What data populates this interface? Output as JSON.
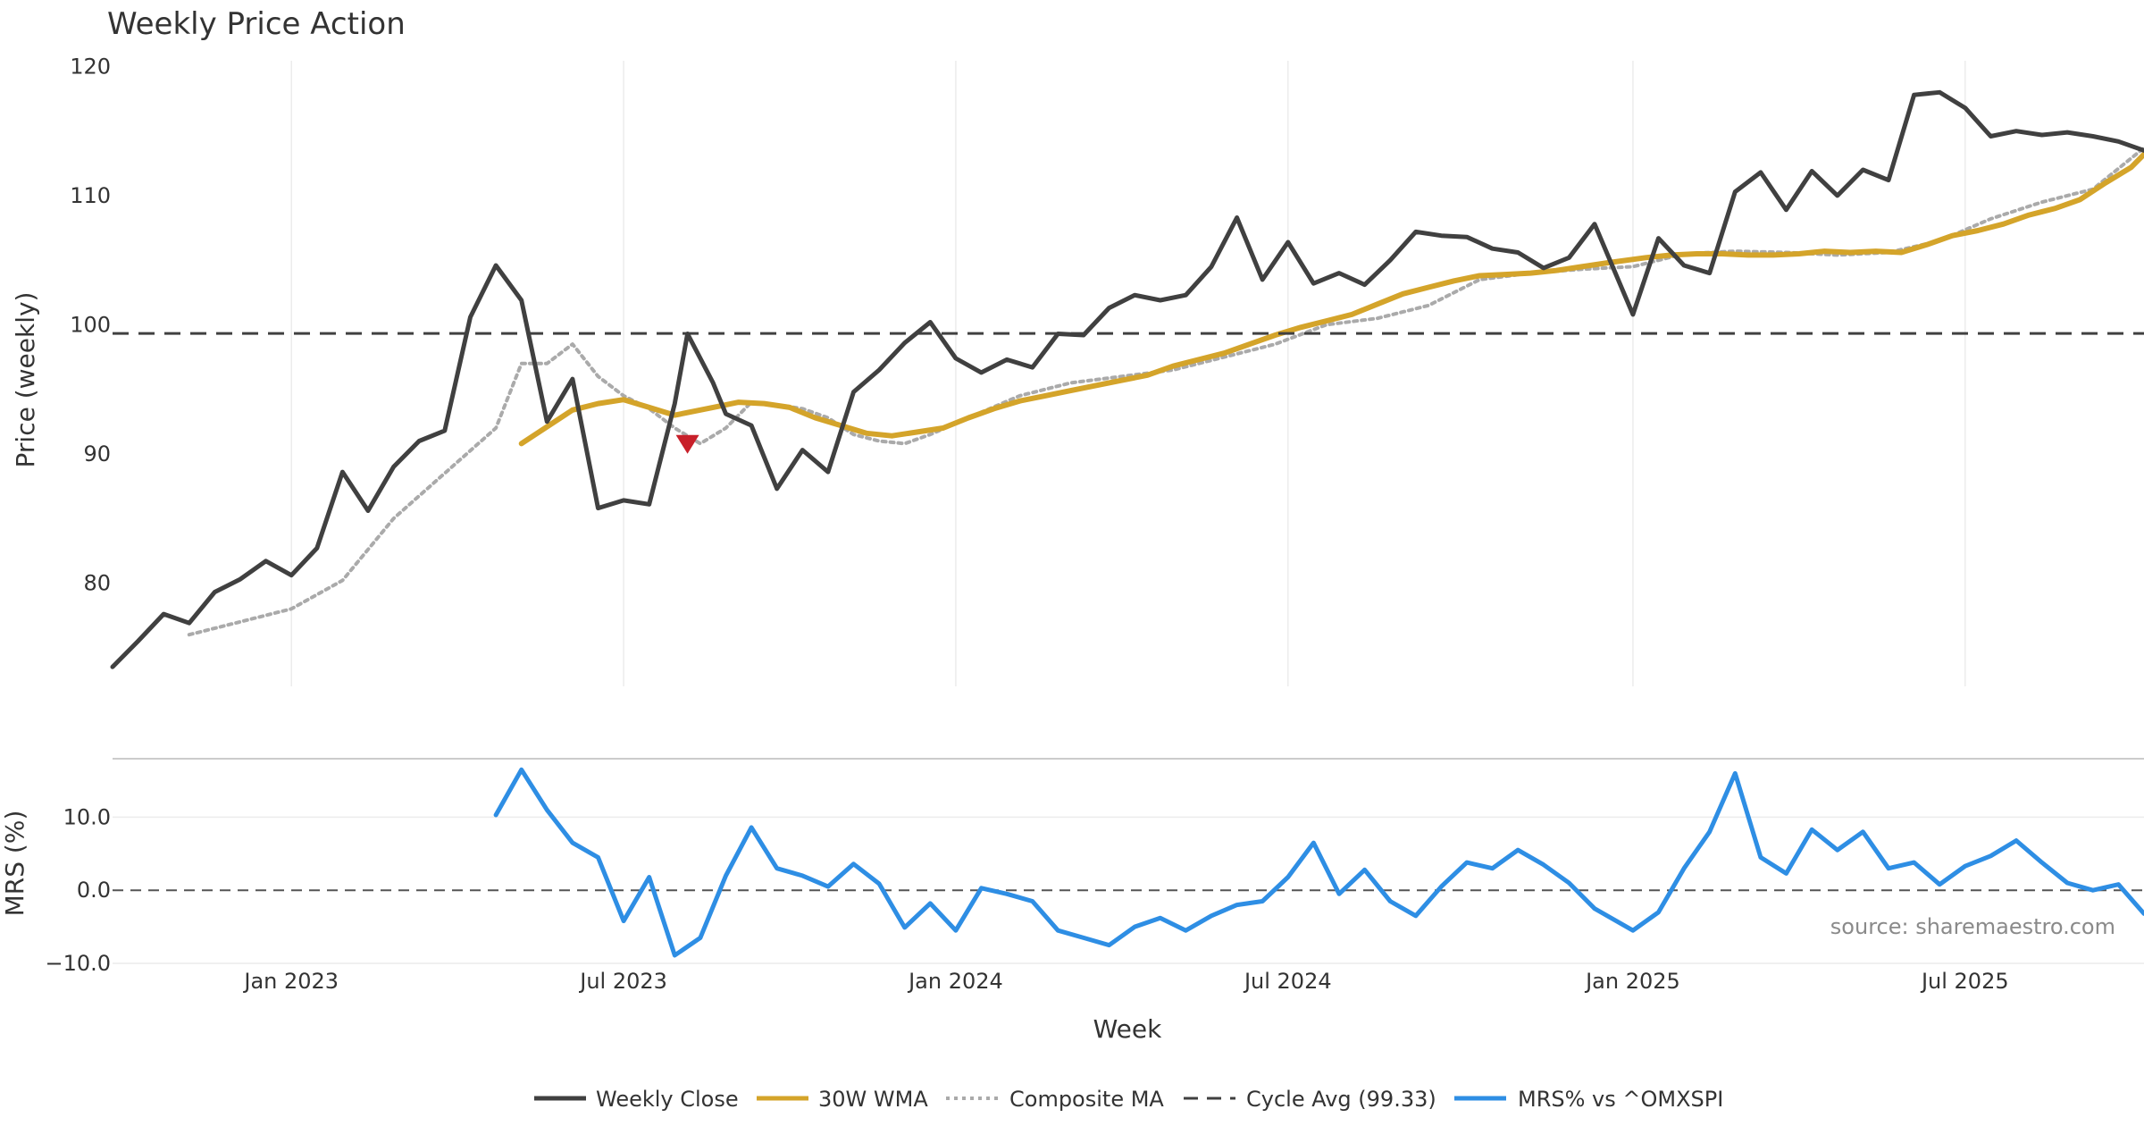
{
  "chart_data": {
    "type": "line",
    "title": "Weekly Price Action",
    "price_panel": {
      "ylabel": "Price (weekly)",
      "ylim": [
        72,
        121
      ],
      "yticks": [
        {
          "value": 80,
          "label": "80"
        },
        {
          "value": 90,
          "label": "90"
        },
        {
          "value": 100,
          "label": "100"
        },
        {
          "value": 110,
          "label": "110"
        },
        {
          "value": 120,
          "label": "120"
        }
      ],
      "cycle_avg": 99.33
    },
    "mrs_panel": {
      "ylabel": "MRS (%)",
      "ylim": [
        -10,
        18
      ],
      "yticks": [
        {
          "value": -10,
          "label": "−10.0"
        },
        {
          "value": 0,
          "label": "0.0"
        },
        {
          "value": 10,
          "label": "10.0"
        }
      ],
      "source_note": "source: sharemaestro.com"
    },
    "xlabel": "Week",
    "x_start": "2022-09-26",
    "x_end": "2025-10-13",
    "x_ticks": [
      {
        "date": "2023-01-02",
        "label": "Jan 2023"
      },
      {
        "date": "2023-07-03",
        "label": "Jul 2023"
      },
      {
        "date": "2024-01-01",
        "label": "Jan 2024"
      },
      {
        "date": "2024-07-01",
        "label": "Jul 2024"
      },
      {
        "date": "2025-01-06",
        "label": "Jan 2025"
      },
      {
        "date": "2025-07-07",
        "label": "Jul 2025"
      }
    ],
    "series": [
      {
        "name": "Weekly Close",
        "color": "#404040",
        "dates": [
          "2022-09-26",
          "2022-10-10",
          "2022-10-24",
          "2022-11-07",
          "2022-11-21",
          "2022-12-05",
          "2022-12-19",
          "2023-01-02",
          "2023-01-16",
          "2023-01-30",
          "2023-02-13",
          "2023-02-27",
          "2023-03-13",
          "2023-03-27",
          "2023-04-10",
          "2023-04-24",
          "2023-05-08",
          "2023-05-22",
          "2023-06-05",
          "2023-06-19",
          "2023-07-03",
          "2023-07-17",
          "2023-07-31",
          "2023-08-07",
          "2023-08-21",
          "2023-08-28",
          "2023-09-11",
          "2023-09-25",
          "2023-10-09",
          "2023-10-23",
          "2023-11-06",
          "2023-11-20",
          "2023-12-04",
          "2023-12-18",
          "2024-01-01",
          "2024-01-15",
          "2024-01-29",
          "2024-02-12",
          "2024-02-26",
          "2024-03-11",
          "2024-03-25",
          "2024-04-08",
          "2024-04-22",
          "2024-05-06",
          "2024-05-20",
          "2024-06-03",
          "2024-06-17",
          "2024-07-01",
          "2024-07-15",
          "2024-07-29",
          "2024-08-12",
          "2024-08-26",
          "2024-09-09",
          "2024-09-23",
          "2024-10-07",
          "2024-10-21",
          "2024-11-04",
          "2024-11-18",
          "2024-12-02",
          "2024-12-16",
          "2025-01-06",
          "2025-01-20",
          "2025-02-03",
          "2025-02-17",
          "2025-03-03",
          "2025-03-17",
          "2025-03-31",
          "2025-04-14",
          "2025-04-28",
          "2025-05-12",
          "2025-05-26",
          "2025-06-09",
          "2025-06-23",
          "2025-07-07",
          "2025-07-21",
          "2025-08-04",
          "2025-08-18",
          "2025-09-01",
          "2025-09-15",
          "2025-09-29",
          "2025-10-13"
        ],
        "values": [
          73.5,
          75.5,
          77.6,
          76.9,
          79.3,
          80.3,
          81.7,
          80.6,
          82.7,
          88.6,
          85.6,
          89.0,
          91.0,
          91.8,
          100.6,
          104.6,
          101.9,
          92.5,
          95.8,
          85.8,
          86.4,
          86.1,
          93.9,
          99.3,
          95.5,
          93.1,
          92.2,
          87.3,
          90.3,
          88.6,
          94.8,
          96.5,
          98.6,
          100.2,
          97.4,
          96.3,
          97.3,
          96.7,
          99.3,
          99.2,
          101.3,
          102.3,
          101.9,
          102.3,
          104.5,
          108.3,
          103.5,
          106.4,
          103.2,
          104.0,
          103.1,
          105.0,
          107.2,
          106.9,
          106.8,
          105.9,
          105.6,
          104.4,
          105.2,
          107.8,
          100.8,
          106.7,
          104.6,
          104.0,
          110.3,
          111.8,
          108.9,
          111.9,
          110.0,
          112.0,
          111.2,
          117.8,
          118.0,
          116.8,
          114.6,
          115.0,
          114.7,
          114.9,
          114.6,
          114.2,
          113.5
        ]
      },
      {
        "name": "30W WMA",
        "color": "#d4a42a",
        "dates": [
          "2023-05-08",
          "2023-06-05",
          "2023-06-19",
          "2023-07-03",
          "2023-07-17",
          "2023-07-31",
          "2023-08-21",
          "2023-09-04",
          "2023-09-18",
          "2023-10-02",
          "2023-10-16",
          "2023-10-30",
          "2023-11-13",
          "2023-11-27",
          "2023-12-11",
          "2023-12-25",
          "2024-01-08",
          "2024-01-22",
          "2024-02-05",
          "2024-02-19",
          "2024-03-04",
          "2024-03-18",
          "2024-04-01",
          "2024-04-15",
          "2024-04-29",
          "2024-05-13",
          "2024-05-27",
          "2024-06-10",
          "2024-06-24",
          "2024-07-08",
          "2024-07-22",
          "2024-08-05",
          "2024-08-19",
          "2024-09-02",
          "2024-09-16",
          "2024-09-30",
          "2024-10-14",
          "2024-10-28",
          "2024-11-11",
          "2024-11-25",
          "2024-12-09",
          "2024-12-23",
          "2025-01-13",
          "2025-01-27",
          "2025-02-10",
          "2025-02-24",
          "2025-03-10",
          "2025-03-24",
          "2025-04-07",
          "2025-04-21",
          "2025-05-05",
          "2025-05-19",
          "2025-06-02",
          "2025-06-16",
          "2025-06-30",
          "2025-07-14",
          "2025-07-28",
          "2025-08-11",
          "2025-08-25",
          "2025-09-08",
          "2025-09-22",
          "2025-10-06",
          "2025-10-13"
        ],
        "values": [
          90.8,
          93.4,
          93.9,
          94.2,
          93.6,
          93.0,
          93.6,
          94.0,
          93.9,
          93.6,
          92.8,
          92.2,
          91.6,
          91.4,
          91.7,
          92.0,
          92.8,
          93.5,
          94.1,
          94.5,
          94.9,
          95.3,
          95.7,
          96.1,
          96.8,
          97.3,
          97.8,
          98.5,
          99.2,
          99.8,
          100.3,
          100.8,
          101.6,
          102.4,
          102.9,
          103.4,
          103.8,
          103.9,
          104.0,
          104.2,
          104.5,
          104.8,
          105.2,
          105.4,
          105.5,
          105.5,
          105.4,
          105.4,
          105.5,
          105.7,
          105.6,
          105.7,
          105.6,
          106.2,
          106.9,
          107.3,
          107.8,
          108.5,
          109.0,
          109.7,
          111.0,
          112.2,
          113.2
        ]
      },
      {
        "name": "Composite MA",
        "color": "#aaaaaa",
        "dates": [
          "2022-11-07",
          "2022-12-05",
          "2023-01-02",
          "2023-01-30",
          "2023-02-27",
          "2023-03-27",
          "2023-04-24",
          "2023-05-08",
          "2023-05-22",
          "2023-06-05",
          "2023-06-19",
          "2023-07-03",
          "2023-07-17",
          "2023-07-31",
          "2023-08-14",
          "2023-08-28",
          "2023-09-11",
          "2023-09-25",
          "2023-10-09",
          "2023-10-23",
          "2023-11-06",
          "2023-11-20",
          "2023-12-04",
          "2023-12-18",
          "2024-01-08",
          "2024-02-05",
          "2024-03-04",
          "2024-04-01",
          "2024-04-29",
          "2024-05-27",
          "2024-06-24",
          "2024-07-22",
          "2024-08-19",
          "2024-09-16",
          "2024-10-14",
          "2024-11-11",
          "2024-12-09",
          "2025-01-06",
          "2025-02-03",
          "2025-03-03",
          "2025-03-31",
          "2025-04-28",
          "2025-05-26",
          "2025-06-23",
          "2025-07-21",
          "2025-08-18",
          "2025-09-15",
          "2025-10-13"
        ],
        "values": [
          76.0,
          77.0,
          78.0,
          80.2,
          85.0,
          88.5,
          92.0,
          97.0,
          97.0,
          98.5,
          96.0,
          94.5,
          93.5,
          92.0,
          90.8,
          92.0,
          94.0,
          93.8,
          93.5,
          92.8,
          91.5,
          91.0,
          90.8,
          91.5,
          92.8,
          94.5,
          95.5,
          96.0,
          96.5,
          97.5,
          98.5,
          100.0,
          100.5,
          101.5,
          103.5,
          104.0,
          104.3,
          104.5,
          105.5,
          105.7,
          105.6,
          105.4,
          105.6,
          106.5,
          108.2,
          109.5,
          110.5,
          113.7
        ]
      },
      {
        "name": "Cycle Avg (99.33)",
        "color": "#404040",
        "value": 99.33
      },
      {
        "name": "MRS% vs ^OMXSPI",
        "color": "#2e8ee4",
        "dates": [
          "2023-04-24",
          "2023-05-08",
          "2023-05-22",
          "2023-06-05",
          "2023-06-19",
          "2023-07-03",
          "2023-07-17",
          "2023-07-31",
          "2023-08-14",
          "2023-08-28",
          "2023-09-11",
          "2023-09-25",
          "2023-10-09",
          "2023-10-23",
          "2023-11-06",
          "2023-11-20",
          "2023-12-04",
          "2023-12-18",
          "2024-01-01",
          "2024-01-15",
          "2024-01-29",
          "2024-02-12",
          "2024-02-26",
          "2024-03-11",
          "2024-03-25",
          "2024-04-08",
          "2024-04-22",
          "2024-05-06",
          "2024-05-20",
          "2024-06-03",
          "2024-06-17",
          "2024-07-01",
          "2024-07-15",
          "2024-07-29",
          "2024-08-12",
          "2024-08-26",
          "2024-09-09",
          "2024-09-23",
          "2024-10-07",
          "2024-10-21",
          "2024-11-04",
          "2024-11-18",
          "2024-12-02",
          "2024-12-16",
          "2025-01-06",
          "2025-01-20",
          "2025-02-03",
          "2025-02-17",
          "2025-03-03",
          "2025-03-17",
          "2025-03-31",
          "2025-04-14",
          "2025-04-28",
          "2025-05-12",
          "2025-05-26",
          "2025-06-09",
          "2025-06-23",
          "2025-07-07",
          "2025-07-21",
          "2025-08-04",
          "2025-08-18",
          "2025-09-01",
          "2025-09-15",
          "2025-09-29",
          "2025-10-13"
        ],
        "values": [
          10.3,
          16.5,
          11.0,
          6.5,
          4.5,
          -4.2,
          1.8,
          -8.9,
          -6.5,
          2.0,
          8.6,
          3.0,
          2.0,
          0.5,
          3.6,
          0.9,
          -5.1,
          -1.8,
          -5.5,
          0.3,
          -0.5,
          -1.5,
          -5.5,
          -6.5,
          -7.5,
          -5.0,
          -3.8,
          -5.5,
          -3.5,
          -2.0,
          -1.5,
          1.8,
          6.5,
          -0.5,
          2.8,
          -1.5,
          -3.5,
          0.5,
          3.8,
          3.0,
          5.5,
          3.5,
          1.0,
          -2.5,
          -5.5,
          -3.0,
          3.0,
          8.0,
          16.0,
          4.5,
          2.3,
          8.3,
          5.5,
          8.0,
          3.0,
          3.8,
          0.8,
          3.3,
          4.7,
          6.8,
          3.8,
          1.0,
          0.0,
          0.8,
          -3.2
        ]
      }
    ],
    "annotations": [
      {
        "type": "sell-marker",
        "date": "2023-08-07",
        "value": 90.7,
        "color": "#c8202a"
      }
    ]
  },
  "legend": {
    "items": [
      {
        "label": "Weekly Close",
        "color": "#404040",
        "style": "solid"
      },
      {
        "label": "30W WMA",
        "color": "#d4a42a",
        "style": "solid"
      },
      {
        "label": "Composite MA",
        "color": "#aaaaaa",
        "style": "dotted"
      },
      {
        "label": "Cycle Avg (99.33)",
        "color": "#404040",
        "style": "dashed"
      },
      {
        "label": "MRS% vs ^OMXSPI",
        "color": "#2e8ee4",
        "style": "solid"
      }
    ]
  }
}
